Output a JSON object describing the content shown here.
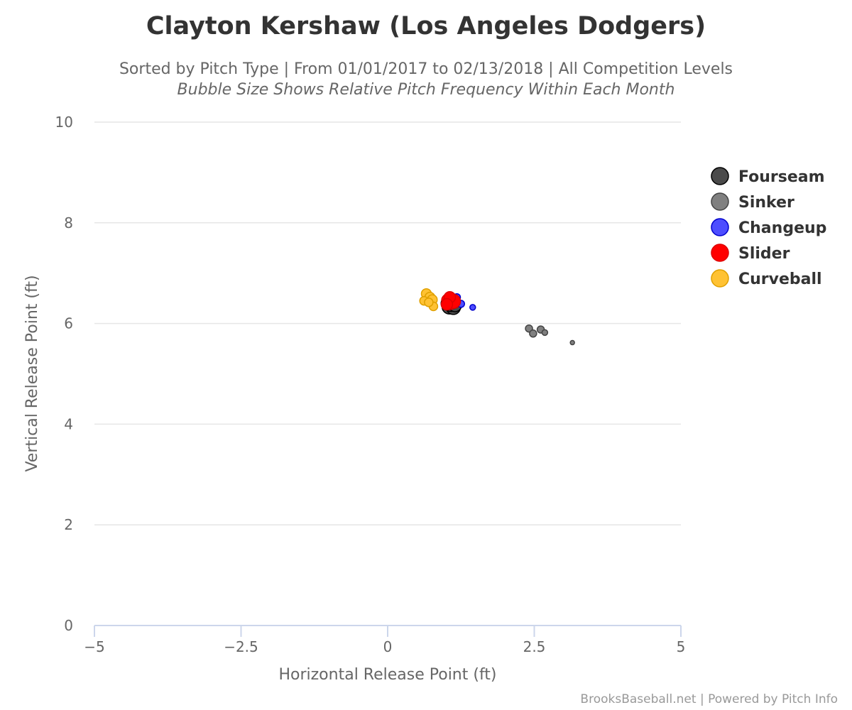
{
  "chart_data": {
    "type": "scatter",
    "title": "Clayton Kershaw (Los Angeles Dodgers)",
    "subtitle": "Sorted by Pitch Type | From 01/01/2017 to 02/13/2018 | All Competition Levels",
    "subtitle2": "Bubble Size Shows Relative Pitch Frequency Within Each Month",
    "xlabel": "Horizontal Release Point (ft)",
    "ylabel": "Vertical Release Point (ft)",
    "xlim": [
      -5,
      5
    ],
    "ylim": [
      0,
      10
    ],
    "x_ticks": [
      "−5",
      "−2.5",
      "0",
      "2.5",
      "5"
    ],
    "x_tick_values": [
      -5,
      -2.5,
      0,
      2.5,
      5
    ],
    "y_ticks": [
      "0",
      "2",
      "4",
      "6",
      "8",
      "10"
    ],
    "y_tick_values": [
      0,
      2,
      4,
      6,
      8,
      10
    ],
    "grid": "horizontal",
    "legend_position": "right",
    "credits": "BrooksBaseball.net | Powered by Pitch Info",
    "series": [
      {
        "name": "Fourseam",
        "color": "#4a4a4a",
        "stroke": "#000000",
        "points": [
          {
            "x": 1.05,
            "y": 6.33,
            "size": 10
          },
          {
            "x": 1.12,
            "y": 6.32,
            "size": 10
          },
          {
            "x": 1.08,
            "y": 6.38,
            "size": 10
          },
          {
            "x": 1.15,
            "y": 6.36,
            "size": 9
          },
          {
            "x": 1.02,
            "y": 6.4,
            "size": 9
          },
          {
            "x": 1.1,
            "y": 6.42,
            "size": 9
          }
        ]
      },
      {
        "name": "Sinker",
        "color": "#808080",
        "stroke": "#444444",
        "points": [
          {
            "x": 2.41,
            "y": 5.9,
            "size": 5
          },
          {
            "x": 2.48,
            "y": 5.8,
            "size": 5
          },
          {
            "x": 2.61,
            "y": 5.88,
            "size": 5
          },
          {
            "x": 2.68,
            "y": 5.82,
            "size": 4
          },
          {
            "x": 3.15,
            "y": 5.62,
            "size": 3
          }
        ]
      },
      {
        "name": "Changeup",
        "color": "#4d4dff",
        "stroke": "#0000cc",
        "points": [
          {
            "x": 1.18,
            "y": 6.52,
            "size": 5
          },
          {
            "x": 1.25,
            "y": 6.39,
            "size": 5
          },
          {
            "x": 1.45,
            "y": 6.32,
            "size": 4
          },
          {
            "x": 1.12,
            "y": 6.46,
            "size": 5
          }
        ]
      },
      {
        "name": "Slider",
        "color": "#ff0000",
        "stroke": "#dd0000",
        "points": [
          {
            "x": 1.03,
            "y": 6.46,
            "size": 9
          },
          {
            "x": 1.07,
            "y": 6.42,
            "size": 10
          },
          {
            "x": 1.12,
            "y": 6.44,
            "size": 10
          },
          {
            "x": 1.06,
            "y": 6.52,
            "size": 8
          },
          {
            "x": 1.01,
            "y": 6.38,
            "size": 8
          }
        ]
      },
      {
        "name": "Curveball",
        "color": "#ffc233",
        "stroke": "#e0a000",
        "points": [
          {
            "x": 0.66,
            "y": 6.59,
            "size": 7
          },
          {
            "x": 0.72,
            "y": 6.52,
            "size": 7
          },
          {
            "x": 0.62,
            "y": 6.45,
            "size": 6
          },
          {
            "x": 0.76,
            "y": 6.47,
            "size": 7
          },
          {
            "x": 0.78,
            "y": 6.34,
            "size": 6
          },
          {
            "x": 0.7,
            "y": 6.42,
            "size": 6
          }
        ]
      }
    ]
  }
}
